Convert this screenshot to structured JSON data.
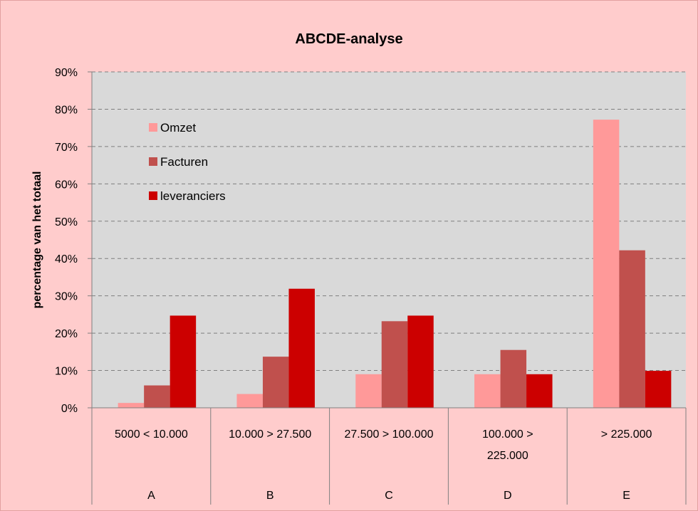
{
  "chart_data": {
    "type": "bar",
    "title": "ABCDE-analyse",
    "ylabel": "percentage van het totaal",
    "xlabel": "",
    "ylim": [
      0,
      90
    ],
    "y_ticks": [
      0,
      10,
      20,
      30,
      40,
      50,
      60,
      70,
      80,
      90
    ],
    "y_tick_suffix": "%",
    "grid": true,
    "legend_position": "top-left",
    "categories": [
      {
        "range": [
          "5000 < 10.000"
        ],
        "label": "A"
      },
      {
        "range": [
          "10.000 > 27.500"
        ],
        "label": "B"
      },
      {
        "range": [
          "27.500 > 100.000"
        ],
        "label": "C"
      },
      {
        "range": [
          "100.000 >",
          "225.000"
        ],
        "label": "D"
      },
      {
        "range": [
          "> 225.000"
        ],
        "label": "E"
      }
    ],
    "series": [
      {
        "name": "Omzet",
        "color": "#ff9999",
        "values": [
          1.3,
          3.7,
          9.0,
          9.0,
          77.2
        ]
      },
      {
        "name": "Facturen",
        "color": "#c0504d",
        "values": [
          6.0,
          13.7,
          23.2,
          15.5,
          42.2
        ]
      },
      {
        "name": "leveranciers",
        "color": "#cc0000",
        "values": [
          24.7,
          31.9,
          24.7,
          9.0,
          9.9
        ]
      }
    ],
    "colors": {
      "chart_background": "#ffcccc",
      "plot_background": "#d9d9d9",
      "gridline": "#7f7f7f",
      "border": "#808080"
    }
  }
}
